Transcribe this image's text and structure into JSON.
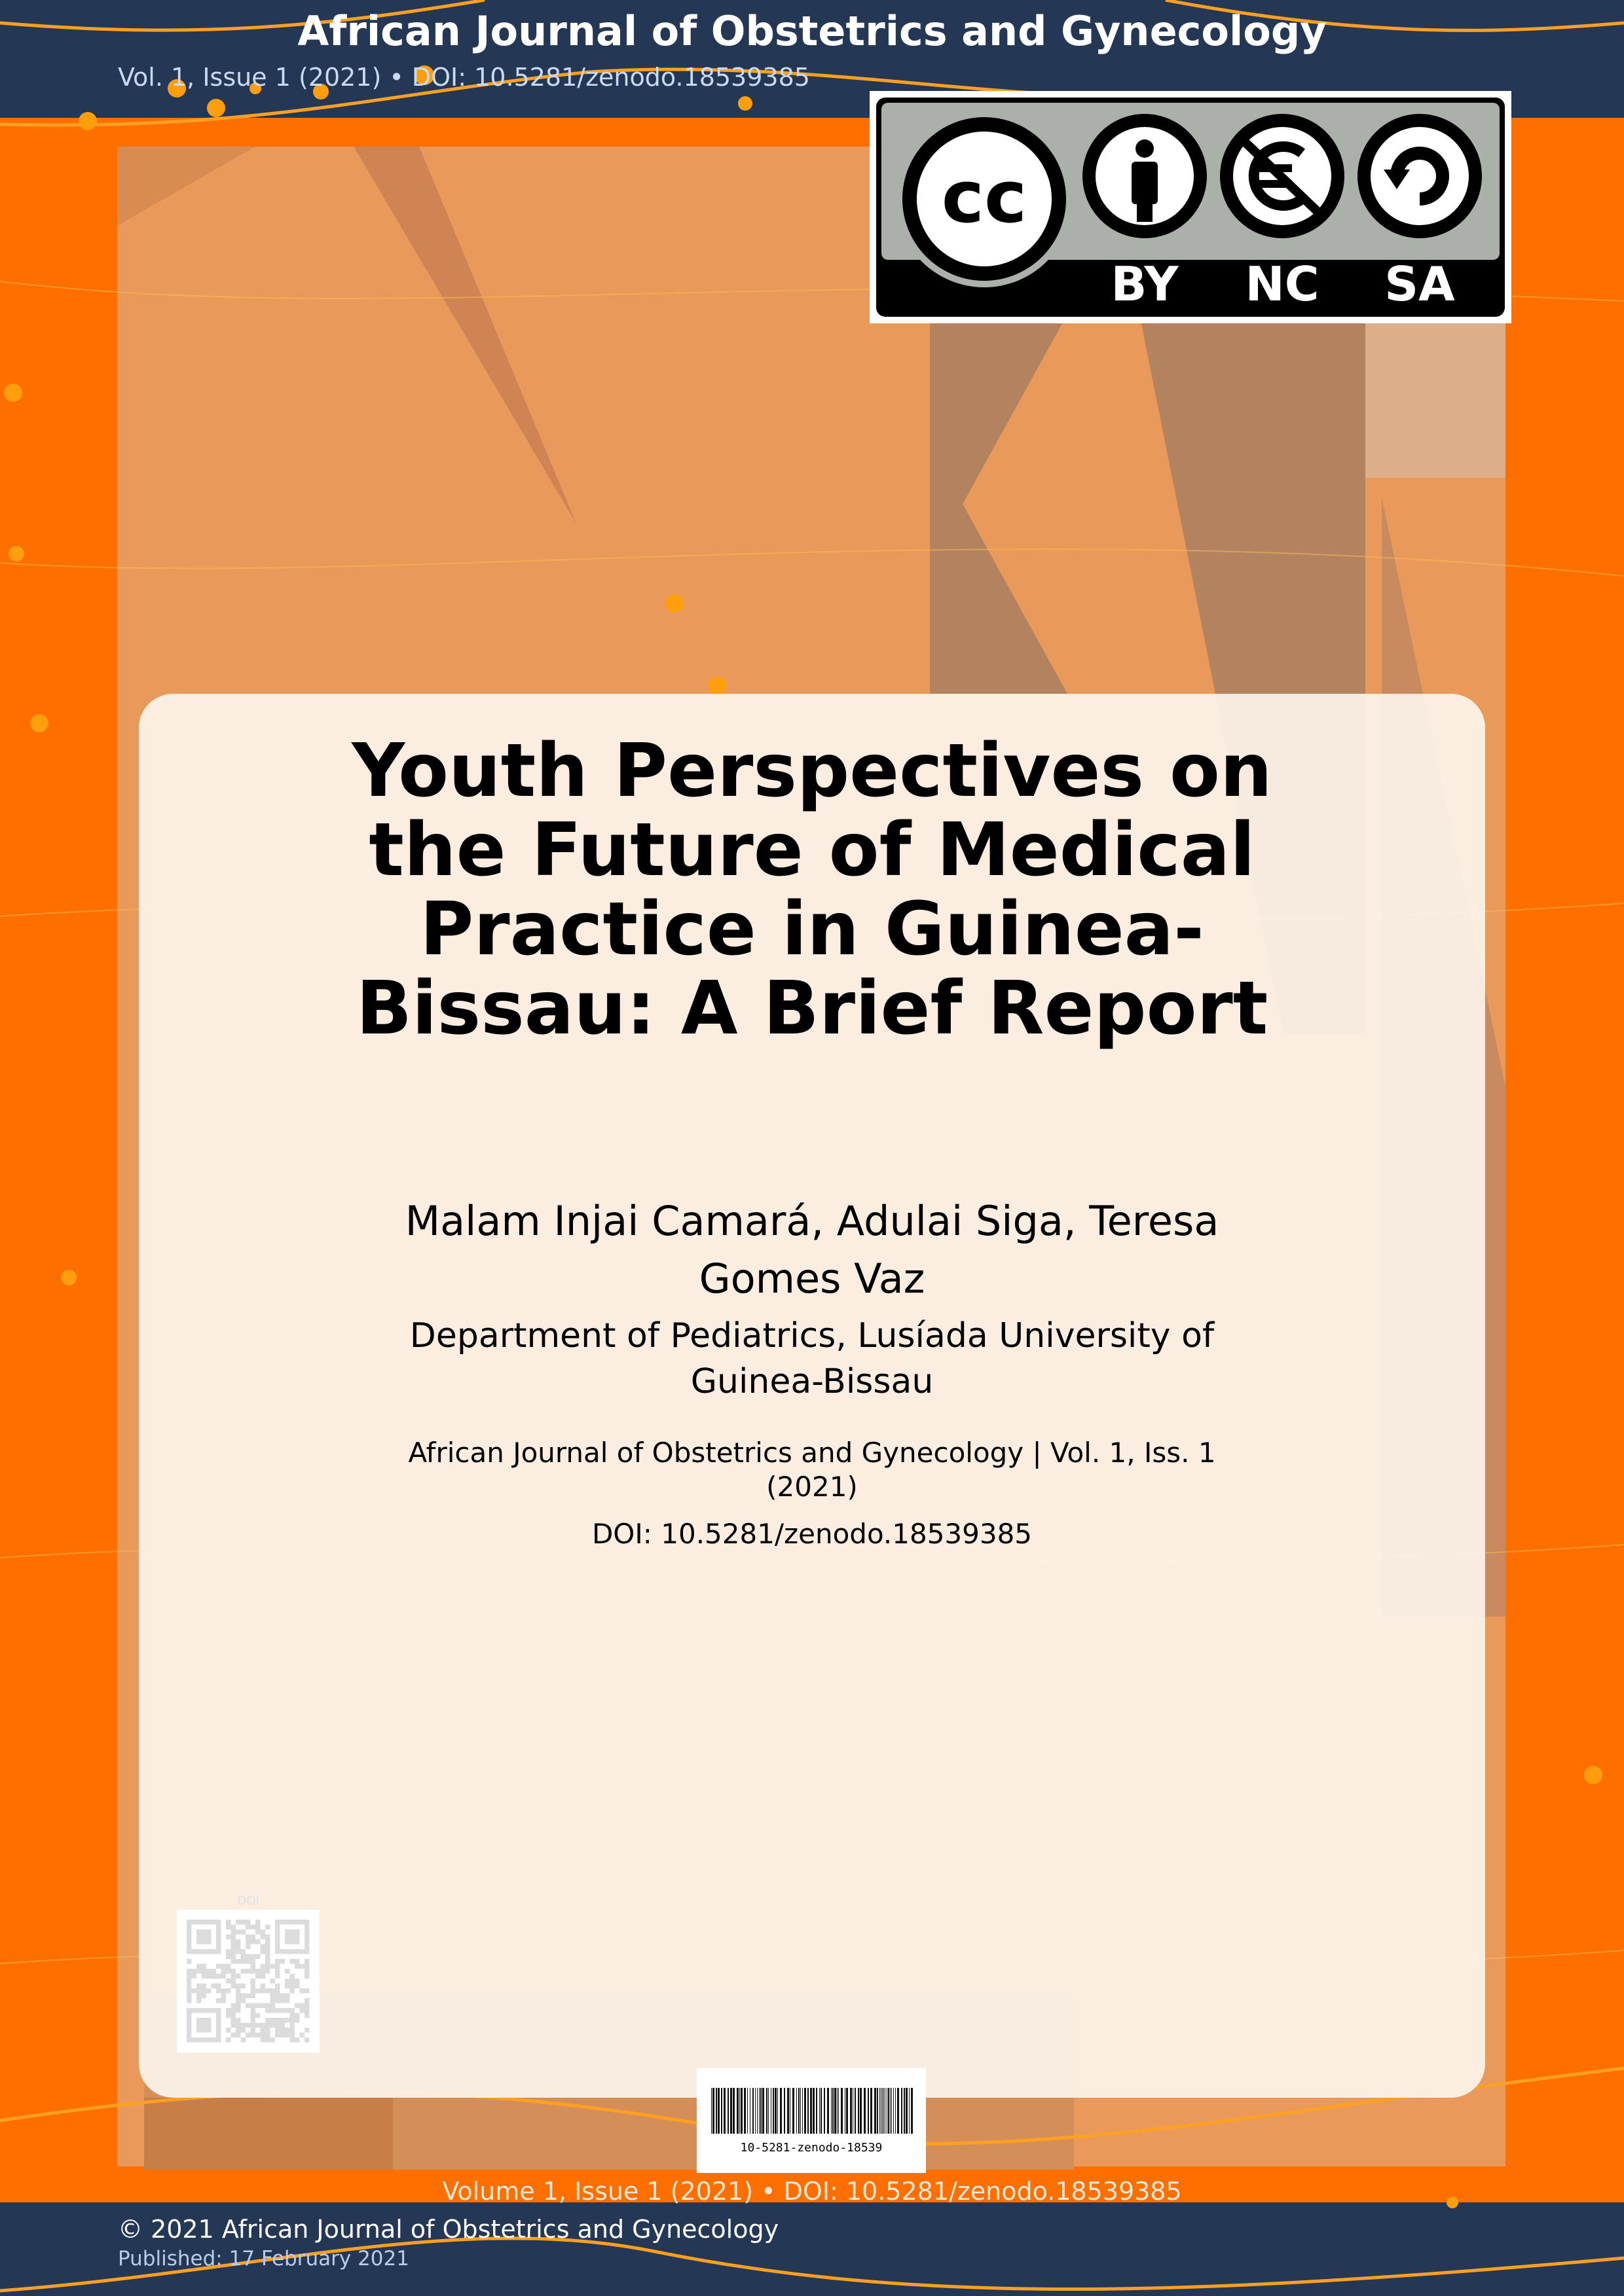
{
  "header": {
    "journal_title": "African Journal of Obstetrics and Gynecology",
    "subtitle": "Vol. 1, Issue 1 (2021) • DOI: 10.5281/zenodo.18539385"
  },
  "license": {
    "icons": [
      "cc-icon",
      "by-attribution-icon",
      "nc-noncommercial-euro-icon",
      "sa-sharealike-icon"
    ],
    "labels": {
      "by": "BY",
      "nc": "NC",
      "sa": "SA"
    },
    "text_cc": "cc"
  },
  "article": {
    "title": "Youth Perspectives on the Future of Medical Practice in Guinea-Bissau: A Brief Report",
    "authors": "Malam Injai Camará, Adulai Siga, Teresa Gomes Vaz",
    "affiliation": "Department of Pediatrics, Lusíada University of Guinea-Bissau",
    "citation": "African Journal of Obstetrics and Gynecology | Vol. 1, Iss. 1 (2021)",
    "doi": "DOI: 10.5281/zenodo.18539385"
  },
  "qr": {
    "label": "DOI"
  },
  "barcode": {
    "text": "10-5281-zenodo-18539"
  },
  "footer": {
    "volume_line": "Volume 1, Issue 1 (2021) • DOI: 10.5281/zenodo.18539385",
    "copyright": "© 2021 African Journal of Obstetrics and Gynecology",
    "published": "Published: 17 February 2021"
  },
  "colors": {
    "navy": "#243856",
    "orange": "#ff6f00",
    "accent": "#ff9e0d",
    "panel": "#e99a5b"
  }
}
